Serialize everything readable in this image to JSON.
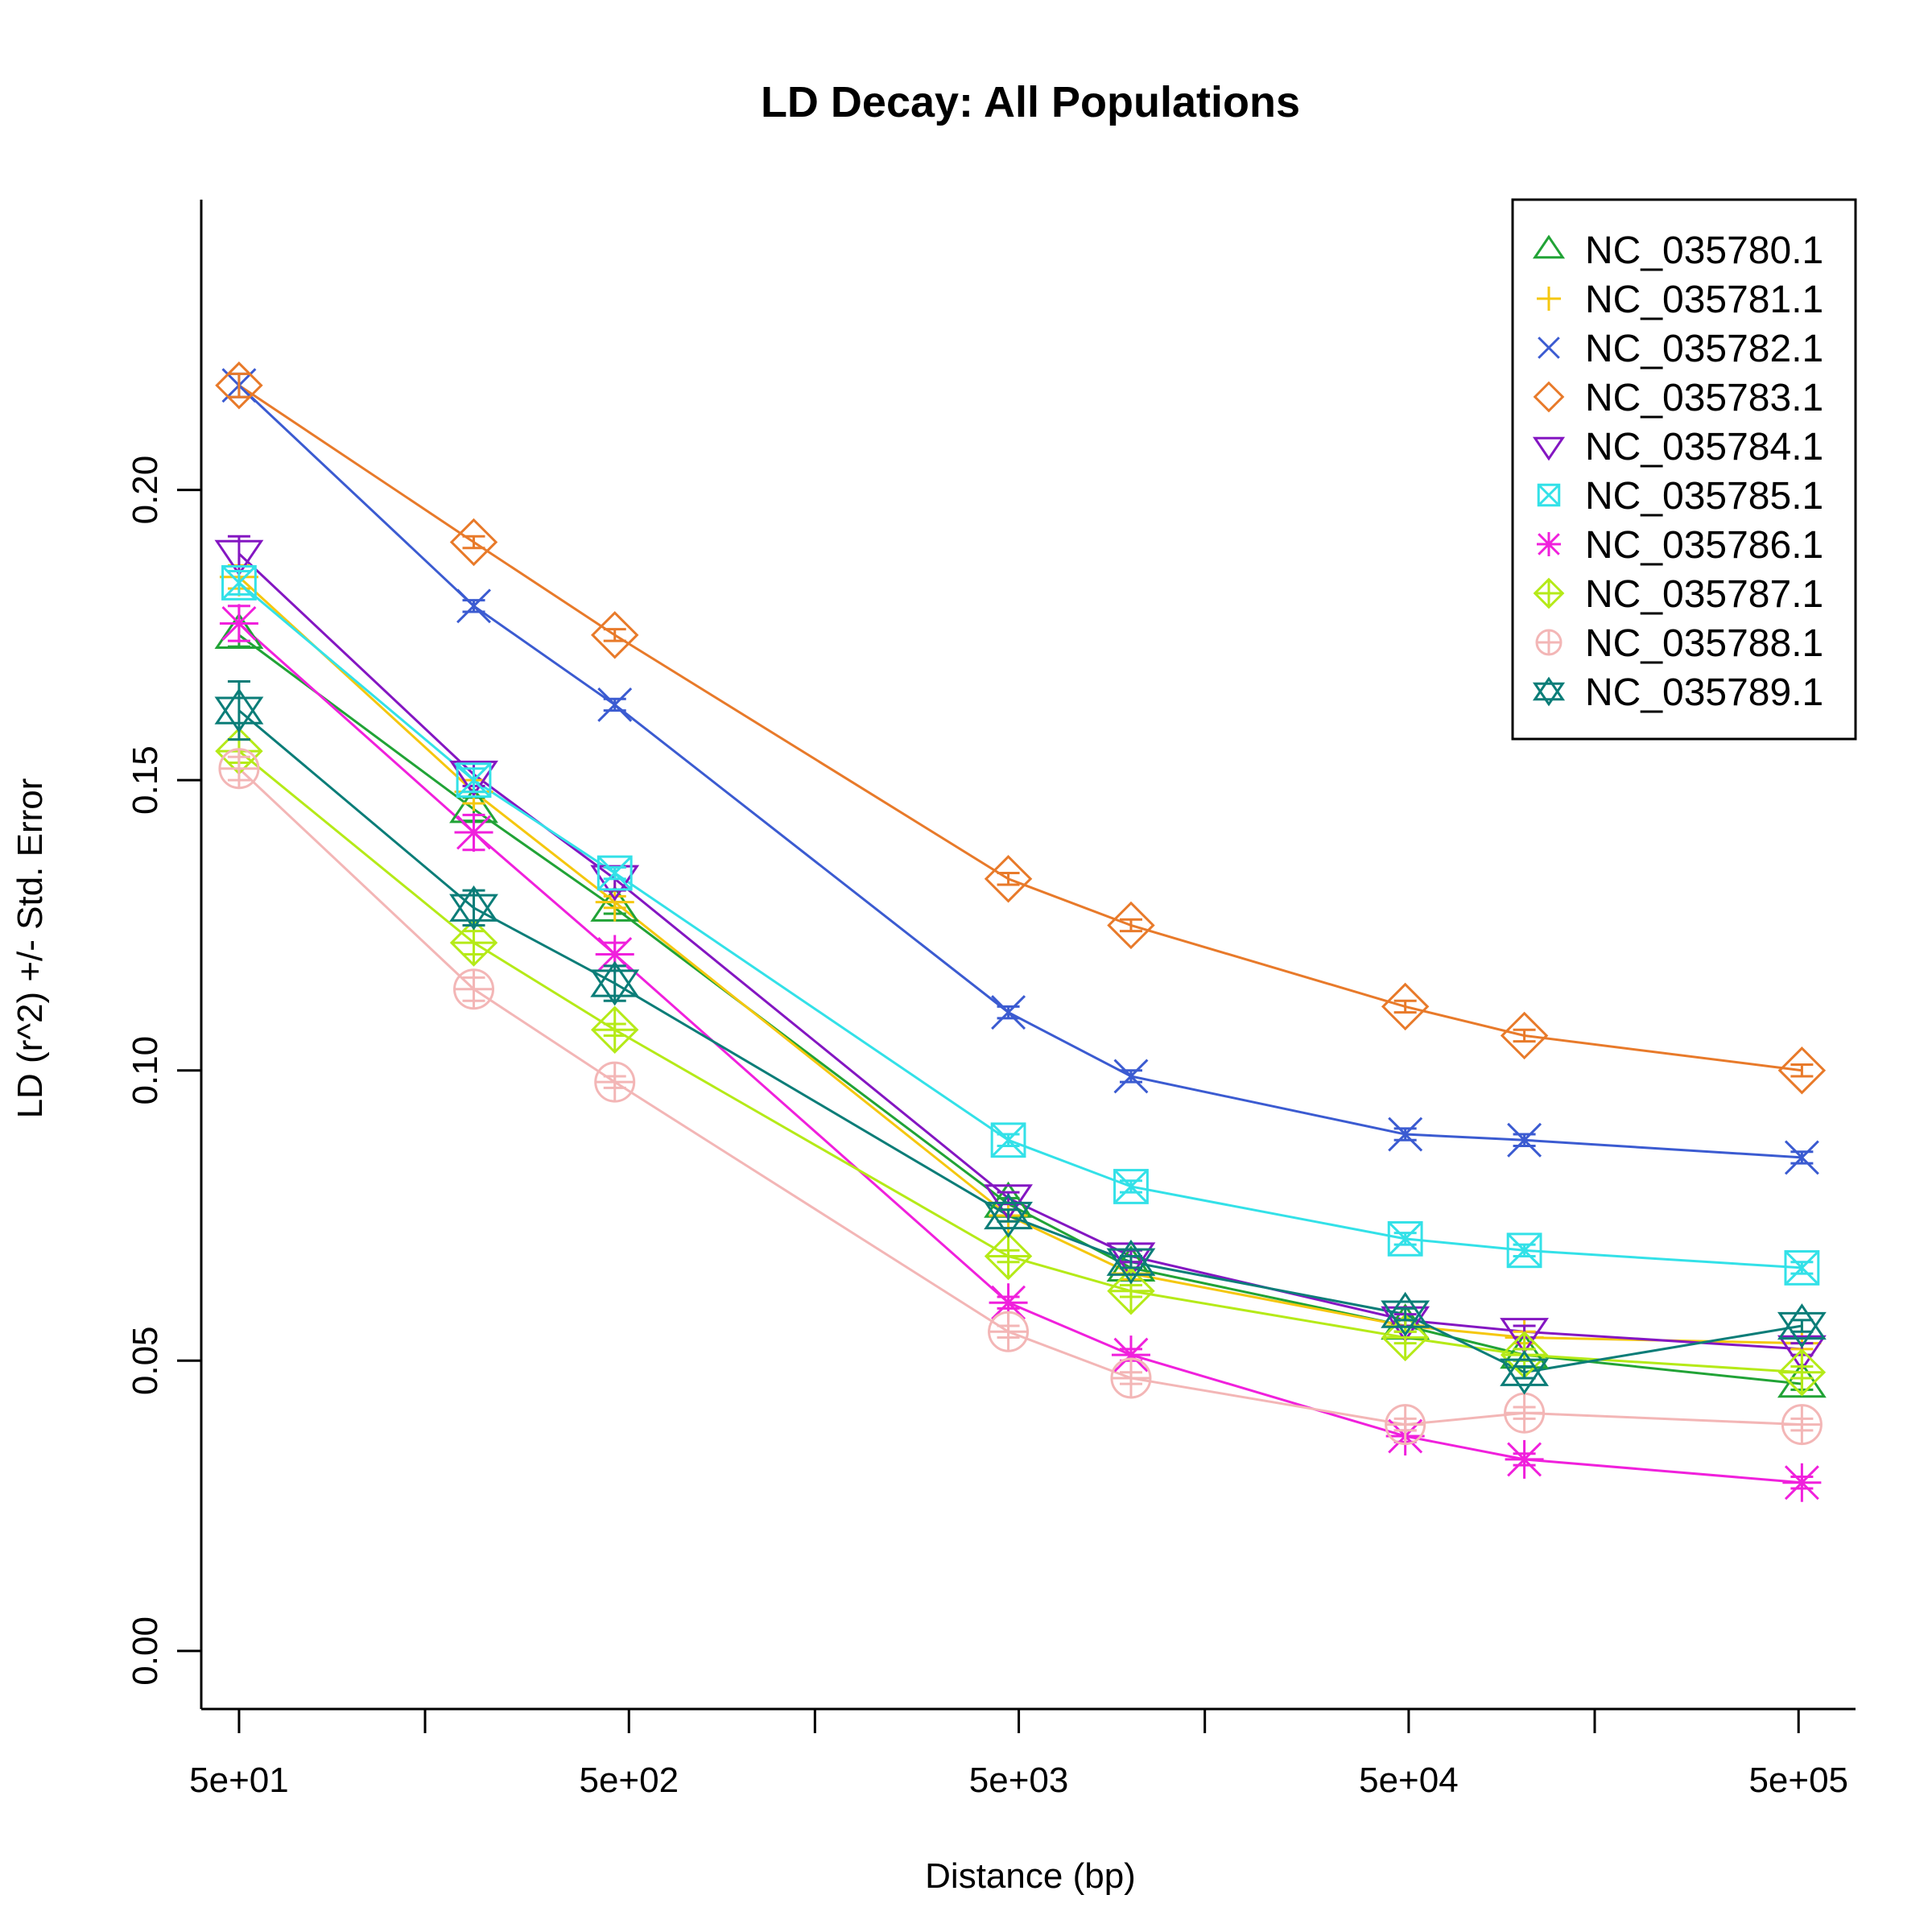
{
  "chart_data": {
    "type": "line",
    "title": "LD Decay: All Populations",
    "xlabel": "Distance (bp)",
    "ylabel": "LD (r^2) +/- Std. Error",
    "x_scale": "log",
    "xlim": [
      40,
      700000
    ],
    "ylim": [
      -0.01,
      0.25
    ],
    "x_ticks": [
      50,
      150,
      500,
      1500,
      5000,
      15000,
      50000,
      150000,
      500000
    ],
    "x_tick_labels": [
      "5e+01",
      "",
      "5e+02",
      "",
      "5e+03",
      "",
      "5e+04",
      "",
      "5e+05"
    ],
    "y_ticks": [
      0.0,
      0.05,
      0.1,
      0.15,
      0.2
    ],
    "y_tick_labels": [
      "0.00",
      "0.05",
      "0.10",
      "0.15",
      "0.20"
    ],
    "legend_position": "top-right",
    "grid": false,
    "x": [
      50,
      200,
      460,
      4700,
      9700,
      49000,
      99000,
      510000
    ],
    "series": [
      {
        "name": "NC_035780.1",
        "color": "#21a336",
        "marker": "triangle-up",
        "values": [
          0.175,
          0.145,
          0.128,
          0.077,
          0.066,
          0.056,
          0.051,
          0.046
        ],
        "se": [
          0.002,
          0.002,
          0.001,
          0.001,
          0.001,
          0.001,
          0.001,
          0.001
        ]
      },
      {
        "name": "NC_035781.1",
        "color": "#f5c70f",
        "marker": "plus",
        "values": [
          0.185,
          0.148,
          0.129,
          0.075,
          0.065,
          0.056,
          0.054,
          0.053
        ],
        "se": [
          0.002,
          0.002,
          0.001,
          0.001,
          0.001,
          0.001,
          0.001,
          0.001
        ]
      },
      {
        "name": "NC_035782.1",
        "color": "#3b5bd1",
        "marker": "x",
        "values": [
          0.218,
          0.18,
          0.163,
          0.11,
          0.099,
          0.089,
          0.088,
          0.085
        ],
        "se": [
          0.002,
          0.001,
          0.001,
          0.001,
          0.001,
          0.001,
          0.001,
          0.001
        ]
      },
      {
        "name": "NC_035783.1",
        "color": "#e87a2a",
        "marker": "diamond",
        "values": [
          0.218,
          0.191,
          0.175,
          0.133,
          0.125,
          0.111,
          0.106,
          0.1
        ],
        "se": [
          0.002,
          0.001,
          0.001,
          0.001,
          0.001,
          0.001,
          0.001,
          0.001
        ]
      },
      {
        "name": "NC_035784.1",
        "color": "#8416c2",
        "marker": "triangle-down",
        "values": [
          0.189,
          0.151,
          0.133,
          0.078,
          0.068,
          0.057,
          0.055,
          0.052
        ],
        "se": [
          0.003,
          0.002,
          0.002,
          0.001,
          0.001,
          0.001,
          0.001,
          0.001
        ]
      },
      {
        "name": "NC_035785.1",
        "color": "#33e1e8",
        "marker": "boxed-x",
        "values": [
          0.184,
          0.15,
          0.134,
          0.088,
          0.08,
          0.071,
          0.069,
          0.066
        ],
        "se": [
          0.002,
          0.002,
          0.001,
          0.001,
          0.001,
          0.001,
          0.001,
          0.001
        ]
      },
      {
        "name": "NC_035786.1",
        "color": "#f020dc",
        "marker": "asterisk",
        "values": [
          0.177,
          0.141,
          0.12,
          0.06,
          0.051,
          0.037,
          0.033,
          0.029
        ],
        "se": [
          0.003,
          0.003,
          0.002,
          0.001,
          0.001,
          0.001,
          0.001,
          0.001
        ]
      },
      {
        "name": "NC_035787.1",
        "color": "#b5ea18",
        "marker": "diamond-plus",
        "values": [
          0.155,
          0.122,
          0.107,
          0.068,
          0.062,
          0.054,
          0.051,
          0.048
        ],
        "se": [
          0.002,
          0.002,
          0.001,
          0.001,
          0.001,
          0.001,
          0.001,
          0.001
        ]
      },
      {
        "name": "NC_035788.1",
        "color": "#f3b6b6",
        "marker": "circle-plus",
        "values": [
          0.152,
          0.114,
          0.098,
          0.055,
          0.047,
          0.039,
          0.041,
          0.039
        ],
        "se": [
          0.002,
          0.002,
          0.001,
          0.001,
          0.001,
          0.001,
          0.001,
          0.001
        ]
      },
      {
        "name": "NC_035789.1",
        "color": "#0b7d78",
        "marker": "star-of-david",
        "values": [
          0.162,
          0.128,
          0.115,
          0.075,
          0.067,
          0.058,
          0.048,
          0.056
        ],
        "se": [
          0.005,
          0.003,
          0.003,
          0.001,
          0.001,
          0.001,
          0.001,
          0.001
        ]
      }
    ]
  }
}
